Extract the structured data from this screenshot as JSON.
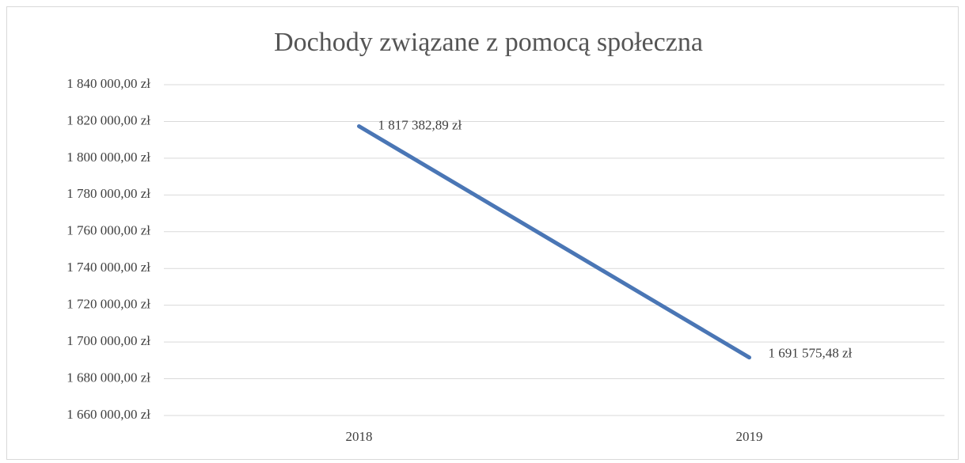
{
  "chart_data": {
    "type": "line",
    "title": "Dochody związane z pomocą społeczna",
    "categories": [
      "2018",
      "2019"
    ],
    "values": [
      1817382.89,
      1691575.48
    ],
    "value_labels": [
      "1 817 382,89 zł",
      "1 691 575,48 zł"
    ],
    "color": "#4a76b5",
    "ylim": [
      1660000,
      1840000
    ],
    "yticks": [
      {
        "value": 1660000,
        "label": "1 660 000,00 zł"
      },
      {
        "value": 1680000,
        "label": "1 680 000,00 zł"
      },
      {
        "value": 1700000,
        "label": "1 700 000,00 zł"
      },
      {
        "value": 1720000,
        "label": "1 720 000,00 zł"
      },
      {
        "value": 1740000,
        "label": "1 740 000,00 zł"
      },
      {
        "value": 1760000,
        "label": "1 760 000,00 zł"
      },
      {
        "value": 1780000,
        "label": "1 780 000,00 zł"
      },
      {
        "value": 1800000,
        "label": "1 800 000,00 zł"
      },
      {
        "value": 1820000,
        "label": "1 820 000,00 zł"
      },
      {
        "value": 1840000,
        "label": "1 840 000,00 zł"
      }
    ],
    "grid": true
  }
}
